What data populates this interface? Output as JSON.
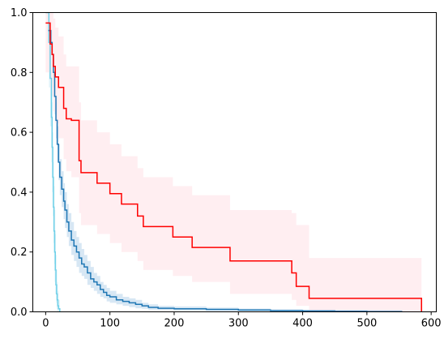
{
  "chart_data": {
    "type": "line",
    "title": "",
    "xlabel": "",
    "ylabel": "",
    "xlim": [
      -20,
      608
    ],
    "ylim": [
      0,
      1
    ],
    "x_ticks": [
      0,
      100,
      200,
      300,
      400,
      500,
      600
    ],
    "y_ticks": [
      0.0,
      0.2,
      0.4,
      0.6,
      0.8,
      1.0
    ],
    "x_tick_labels": [
      "0",
      "100",
      "200",
      "300",
      "400",
      "500",
      "600"
    ],
    "y_tick_labels": [
      "0.0",
      "0.2",
      "0.4",
      "0.6",
      "0.8",
      "1.0"
    ],
    "grid": false,
    "legend": null,
    "series": [
      {
        "style": "step",
        "color": "#6fd0e8",
        "ci_color": "#d8f0f8",
        "x": [
          0,
          5,
          7,
          9,
          10,
          11,
          12,
          13,
          14,
          15,
          16,
          17,
          18,
          19,
          20,
          22
        ],
        "y": [
          1.0,
          0.9,
          0.78,
          0.65,
          0.55,
          0.45,
          0.35,
          0.27,
          0.2,
          0.14,
          0.09,
          0.06,
          0.04,
          0.02,
          0.01,
          0.0
        ],
        "ci_upper": [
          1.0,
          1.0,
          0.9,
          0.8,
          0.7,
          0.6,
          0.5,
          0.42,
          0.34,
          0.26,
          0.19,
          0.14,
          0.1,
          0.07,
          0.04,
          0.02
        ],
        "ci_lower": [
          1.0,
          0.75,
          0.62,
          0.5,
          0.4,
          0.32,
          0.23,
          0.16,
          0.1,
          0.06,
          0.03,
          0.01,
          0.0,
          0.0,
          0.0,
          0.0
        ]
      },
      {
        "style": "step",
        "color": "#1f77b4",
        "ci_color": "#c9dff0",
        "x": [
          4,
          8,
          10,
          12,
          14,
          16,
          18,
          20,
          22,
          25,
          28,
          30,
          33,
          36,
          40,
          44,
          48,
          52,
          56,
          60,
          65,
          70,
          75,
          80,
          85,
          90,
          95,
          100,
          110,
          120,
          130,
          140,
          150,
          160,
          175,
          200,
          250,
          300,
          350,
          400,
          450,
          500,
          555
        ],
        "y": [
          0.94,
          0.9,
          0.86,
          0.8,
          0.72,
          0.64,
          0.56,
          0.5,
          0.45,
          0.41,
          0.37,
          0.34,
          0.3,
          0.27,
          0.24,
          0.22,
          0.2,
          0.18,
          0.16,
          0.15,
          0.13,
          0.11,
          0.1,
          0.09,
          0.075,
          0.065,
          0.055,
          0.05,
          0.04,
          0.035,
          0.03,
          0.025,
          0.02,
          0.015,
          0.012,
          0.01,
          0.008,
          0.006,
          0.004,
          0.003,
          0.002,
          0.001,
          0.001
        ],
        "ci_upper": [
          0.97,
          0.94,
          0.9,
          0.85,
          0.78,
          0.7,
          0.62,
          0.56,
          0.51,
          0.47,
          0.43,
          0.4,
          0.36,
          0.33,
          0.3,
          0.27,
          0.25,
          0.23,
          0.21,
          0.19,
          0.17,
          0.15,
          0.13,
          0.12,
          0.1,
          0.09,
          0.08,
          0.07,
          0.06,
          0.05,
          0.045,
          0.04,
          0.03,
          0.025,
          0.02,
          0.018,
          0.014,
          0.011,
          0.008,
          0.006,
          0.004,
          0.003,
          0.003
        ],
        "ci_lower": [
          0.9,
          0.86,
          0.82,
          0.75,
          0.66,
          0.58,
          0.5,
          0.44,
          0.39,
          0.35,
          0.31,
          0.28,
          0.25,
          0.22,
          0.19,
          0.17,
          0.15,
          0.13,
          0.12,
          0.11,
          0.09,
          0.08,
          0.07,
          0.06,
          0.05,
          0.045,
          0.035,
          0.03,
          0.025,
          0.02,
          0.016,
          0.012,
          0.01,
          0.007,
          0.005,
          0.004,
          0.003,
          0.002,
          0.001,
          0.0,
          0.0,
          0.0,
          0.0
        ]
      },
      {
        "style": "step",
        "color": "#ff0000",
        "ci_color": "#ffe8ec",
        "x": [
          0,
          7,
          10,
          12,
          15,
          20,
          28,
          32,
          40,
          52,
          55,
          80,
          100,
          118,
          143,
          152,
          198,
          228,
          287,
          383,
          390,
          410,
          585
        ],
        "y": [
          0.965,
          0.895,
          0.86,
          0.82,
          0.785,
          0.75,
          0.68,
          0.645,
          0.64,
          0.505,
          0.465,
          0.43,
          0.395,
          0.36,
          0.32,
          0.285,
          0.25,
          0.215,
          0.17,
          0.13,
          0.085,
          0.045,
          0.0
        ],
        "ci_upper": [
          1.0,
          1.0,
          1.0,
          0.98,
          0.95,
          0.92,
          0.86,
          0.82,
          0.82,
          0.7,
          0.64,
          0.6,
          0.56,
          0.52,
          0.48,
          0.45,
          0.42,
          0.39,
          0.34,
          0.33,
          0.29,
          0.18,
          0.18
        ],
        "ci_lower": [
          0.8,
          0.75,
          0.72,
          0.67,
          0.63,
          0.58,
          0.51,
          0.47,
          0.45,
          0.33,
          0.29,
          0.26,
          0.23,
          0.2,
          0.17,
          0.14,
          0.12,
          0.1,
          0.06,
          0.04,
          0.02,
          0.0,
          0.0
        ]
      }
    ]
  }
}
